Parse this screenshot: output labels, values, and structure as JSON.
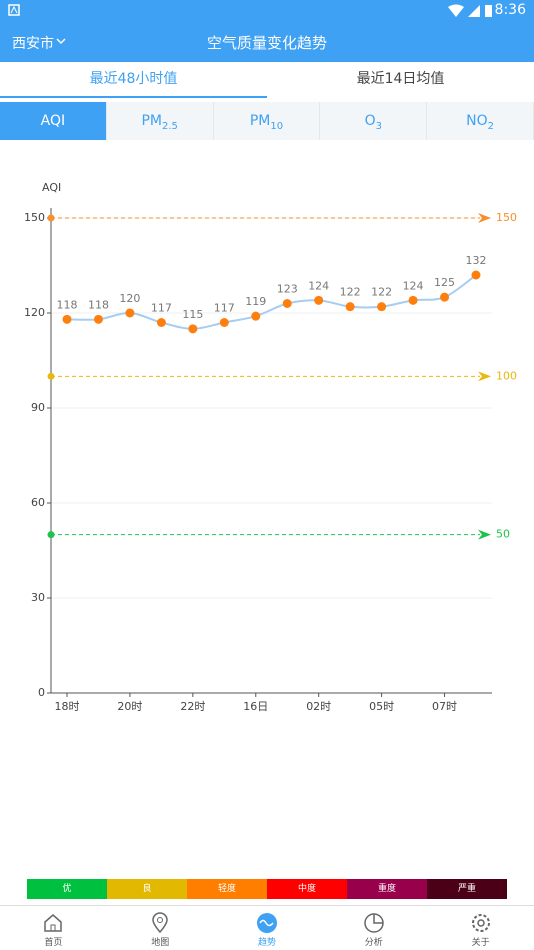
{
  "status_bar": {
    "time": "8:36"
  },
  "app_bar": {
    "city": "西安市",
    "title": "空气质量变化趋势"
  },
  "period_tabs": [
    "最近48小时值",
    "最近14日均值"
  ],
  "pollutant_tabs": [
    {
      "text": "AQI"
    },
    {
      "text": "PM",
      "sub": "2.5"
    },
    {
      "text": "PM",
      "sub": "10"
    },
    {
      "text": "O",
      "sub": "3"
    },
    {
      "text": "NO",
      "sub": "2"
    }
  ],
  "chart_data": {
    "type": "line",
    "y_label": "AQI",
    "categories": [
      "18时",
      null,
      "20时",
      null,
      "22时",
      null,
      "16日",
      null,
      "02时",
      null,
      "05时",
      null,
      "07时",
      null
    ],
    "values": [
      118,
      118,
      120,
      117,
      115,
      117,
      119,
      123,
      124,
      122,
      122,
      124,
      125,
      132
    ],
    "line_color": "#a6cdf0",
    "marker_color": "#ff7f0e",
    "ylim": [
      0,
      150
    ],
    "yticks": [
      0,
      30,
      60,
      90,
      120,
      150
    ],
    "grid": true,
    "reference_lines": [
      {
        "value": 150,
        "color": "#f7902a"
      },
      {
        "value": 100,
        "color": "#e9b90c"
      },
      {
        "value": 50,
        "color": "#1fc24c"
      }
    ]
  },
  "level_legend": [
    {
      "label": "优",
      "color": "#00c13f"
    },
    {
      "label": "良",
      "color": "#e2b800"
    },
    {
      "label": "轻度",
      "color": "#ff7e00"
    },
    {
      "label": "中度",
      "color": "#ff0000"
    },
    {
      "label": "重度",
      "color": "#99004c"
    },
    {
      "label": "严重",
      "color": "#4c0018"
    }
  ],
  "bottom_nav": [
    "首页",
    "地图",
    "趋势",
    "分析",
    "关于"
  ]
}
